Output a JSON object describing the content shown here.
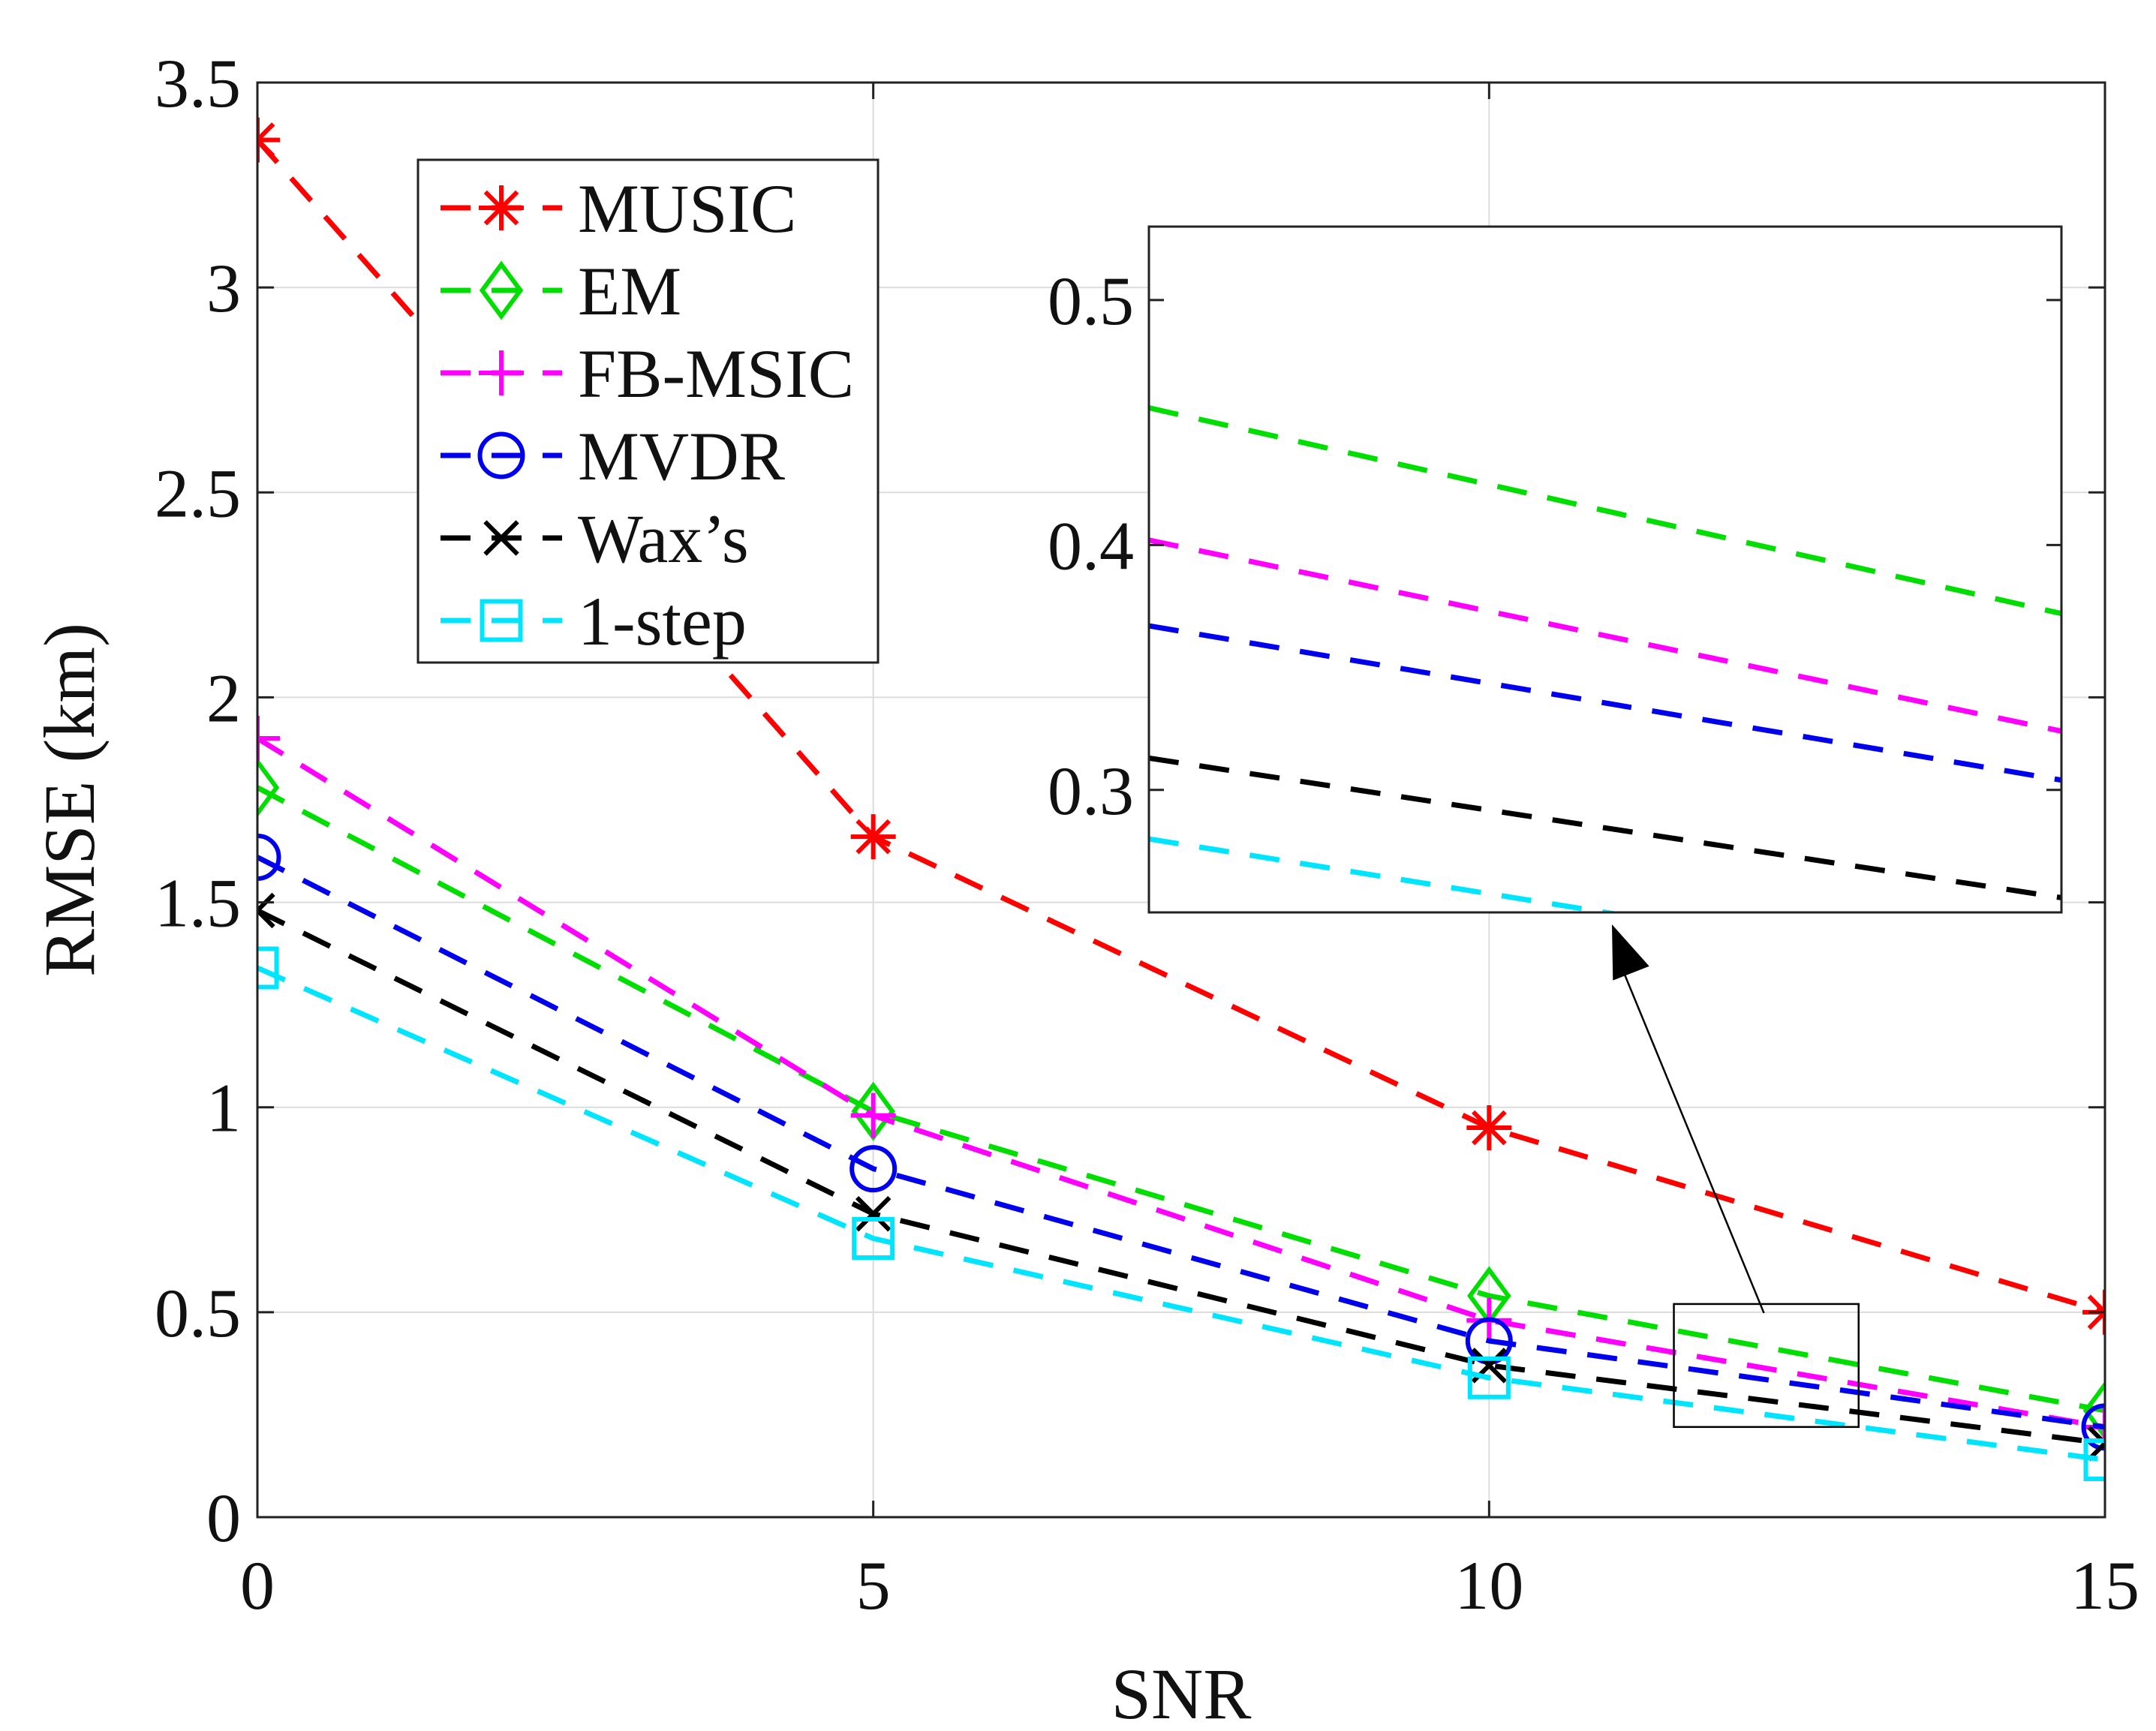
{
  "chart_data": {
    "type": "line",
    "title": "",
    "xlabel": "SNR",
    "ylabel": "RMSE (km)",
    "xlim": [
      0,
      15
    ],
    "ylim": [
      0,
      3.5
    ],
    "xticks": [
      0,
      5,
      10,
      15
    ],
    "xtick_labels": [
      "0",
      "5",
      "10",
      "15"
    ],
    "yticks": [
      0,
      0.5,
      1,
      1.5,
      2,
      2.5,
      3,
      3.5
    ],
    "ytick_labels": [
      "0",
      "0.5",
      "1",
      "1.5",
      "2",
      "2.5",
      "3",
      "3.5"
    ],
    "grid": true,
    "legend_position": "top-left",
    "x": [
      0,
      5,
      10,
      15
    ],
    "series": [
      {
        "name": "MUSIC",
        "color": "#ff0000",
        "marker": "asterisk",
        "values": [
          3.36,
          1.66,
          0.95,
          0.5
        ]
      },
      {
        "name": "EM",
        "color": "#00dd00",
        "marker": "diamond",
        "values": [
          1.78,
          0.99,
          0.54,
          0.26
        ]
      },
      {
        "name": "FB-MSIC",
        "color": "#ff00ff",
        "marker": "plus",
        "values": [
          1.9,
          0.98,
          0.48,
          0.22
        ]
      },
      {
        "name": "MVDR",
        "color": "#0000ee",
        "marker": "circle",
        "values": [
          1.61,
          0.85,
          0.43,
          0.22
        ]
      },
      {
        "name": "Wax’s",
        "color": "#000000",
        "marker": "cross",
        "values": [
          1.48,
          0.74,
          0.37,
          0.18
        ]
      },
      {
        "name": "1-step",
        "color": "#00e5ff",
        "marker": "square",
        "values": [
          1.34,
          0.68,
          0.34,
          0.14
        ]
      }
    ],
    "inset": {
      "xlim": [
        11.5,
        13.0
      ],
      "ylim": [
        0.25,
        0.53
      ],
      "yticks": [
        0.3,
        0.4,
        0.5
      ],
      "ytick_labels": [
        "0.3",
        "0.4",
        "0.5"
      ],
      "zoom_box": {
        "x": [
          11.5,
          13.0
        ],
        "y": [
          0.22,
          0.52
        ]
      }
    }
  }
}
